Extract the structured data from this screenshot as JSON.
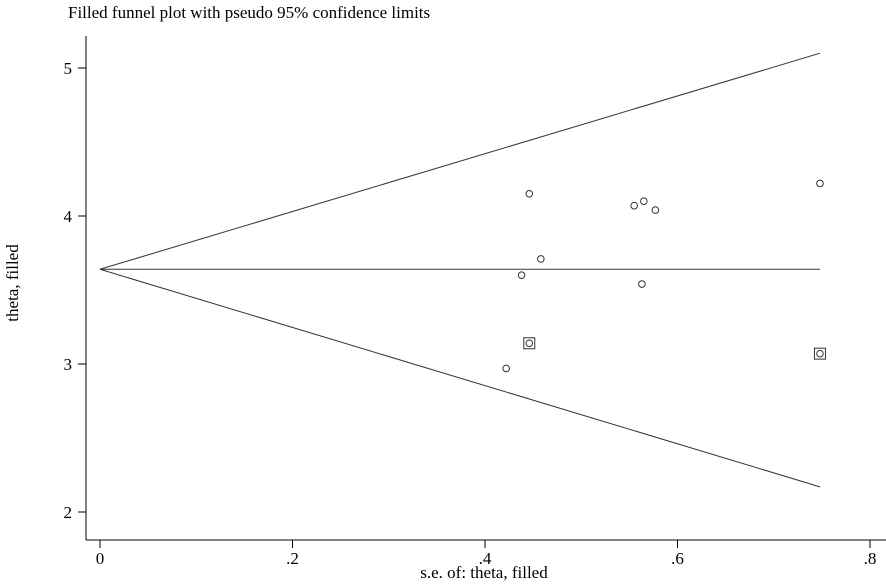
{
  "chart_data": {
    "type": "scatter",
    "title": "Filled funnel plot with pseudo 95% confidence limits",
    "xlabel": "s.e. of: theta, filled",
    "ylabel": "theta, filled",
    "xlim": [
      0,
      0.8
    ],
    "ylim": [
      2,
      5
    ],
    "x_ticks": [
      0,
      0.2,
      0.4,
      0.6,
      0.8
    ],
    "x_tick_labels": [
      "0",
      ".2",
      ".4",
      ".6",
      ".8"
    ],
    "y_ticks": [
      2,
      3,
      4,
      5
    ],
    "y_tick_labels": [
      "2",
      "3",
      "4",
      "5"
    ],
    "grid": false,
    "pooled_estimate": 3.64,
    "confidence_limits": {
      "se_max": 0.748,
      "upper_at_se_max": 5.1,
      "lower_at_se_max": 2.17
    },
    "series": [
      {
        "marker": "circle",
        "points": [
          {
            "x": 0.446,
            "y": 4.15
          },
          {
            "x": 0.458,
            "y": 3.71
          },
          {
            "x": 0.438,
            "y": 3.6
          },
          {
            "x": 0.555,
            "y": 4.07
          },
          {
            "x": 0.565,
            "y": 4.1
          },
          {
            "x": 0.577,
            "y": 4.04
          },
          {
            "x": 0.563,
            "y": 3.54
          },
          {
            "x": 0.748,
            "y": 4.22
          },
          {
            "x": 0.422,
            "y": 2.97
          }
        ]
      },
      {
        "marker": "circle-in-square",
        "points": [
          {
            "x": 0.446,
            "y": 3.14
          },
          {
            "x": 0.748,
            "y": 3.07
          }
        ]
      }
    ]
  }
}
